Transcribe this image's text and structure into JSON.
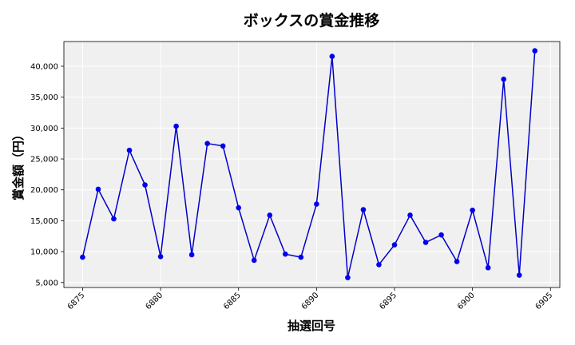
{
  "chart_data": {
    "type": "line",
    "title": "ボックスの賞金推移",
    "xlabel": "抽選回号",
    "ylabel": "賞金額（円）",
    "xlim": [
      6873.8,
      6905.6
    ],
    "ylim": [
      4200,
      44000
    ],
    "xticks": [
      6875,
      6880,
      6885,
      6890,
      6895,
      6900,
      6905
    ],
    "yticks": [
      5000,
      10000,
      15000,
      20000,
      25000,
      30000,
      35000,
      40000
    ],
    "ytick_labels": [
      "5,000",
      "10,000",
      "15,000",
      "20,000",
      "25,000",
      "30,000",
      "35,000",
      "40,000"
    ],
    "grid": true,
    "line_color": "#0000cc",
    "marker_color": "#0000ee",
    "background_color": "#f0f0f0",
    "series": [
      {
        "x": [
          6875,
          6876,
          6877,
          6878,
          6879,
          6880,
          6881,
          6882,
          6883,
          6884,
          6885,
          6886,
          6887,
          6888,
          6889,
          6890,
          6891,
          6892,
          6893,
          6894,
          6895,
          6896,
          6897,
          6898,
          6899,
          6900,
          6901,
          6902,
          6903,
          6904
        ],
        "values": [
          9100,
          20100,
          15300,
          26400,
          20800,
          9200,
          30300,
          9500,
          27500,
          27100,
          17100,
          8600,
          15900,
          9600,
          9100,
          17700,
          41600,
          5800,
          16800,
          7900,
          11100,
          15900,
          11500,
          12700,
          8400,
          16700,
          7400,
          37900,
          6200,
          42500
        ]
      }
    ]
  }
}
